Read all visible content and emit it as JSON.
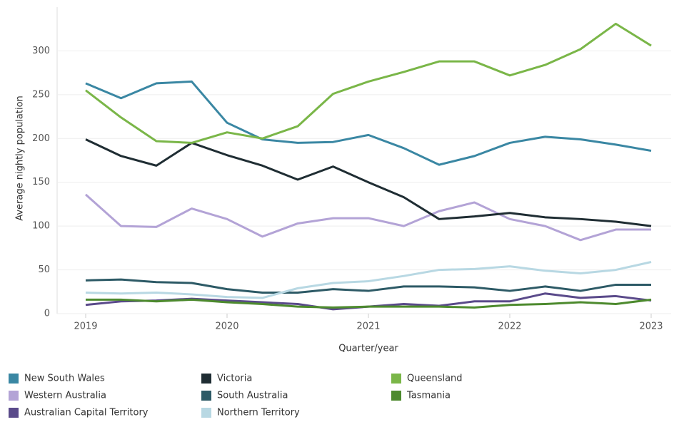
{
  "chart_data": {
    "type": "line",
    "x_label": "Quarter/year",
    "y_label": "Average nightly population",
    "x": [
      2019,
      2019.25,
      2019.5,
      2019.75,
      2020,
      2020.25,
      2020.5,
      2020.75,
      2021,
      2021.25,
      2021.5,
      2021.75,
      2022,
      2022.25,
      2022.5,
      2022.75,
      2023
    ],
    "xlim": [
      2019,
      2023
    ],
    "xticks": [
      2019,
      2020,
      2021,
      2022,
      2023
    ],
    "ylim": [
      0,
      350
    ],
    "yticks": [
      0,
      50,
      100,
      150,
      200,
      250,
      300
    ],
    "grid": true,
    "series": [
      {
        "name": "New South Wales",
        "color": "#3a87a3",
        "values": [
          263,
          246,
          263,
          265,
          218,
          199,
          195,
          196,
          204,
          189,
          170,
          180,
          195,
          202,
          199,
          193,
          186
        ]
      },
      {
        "name": "Western Australia",
        "color": "#b3a3d6",
        "values": [
          136,
          100,
          99,
          120,
          108,
          88,
          103,
          109,
          109,
          100,
          117,
          127,
          108,
          100,
          84,
          96,
          96
        ]
      },
      {
        "name": "Australian Capital Territory",
        "color": "#5a4a8a",
        "values": [
          10,
          14,
          15,
          17,
          15,
          13,
          11,
          5,
          8,
          11,
          9,
          14,
          14,
          23,
          18,
          20,
          15
        ]
      },
      {
        "name": "Victoria",
        "color": "#1f2d33",
        "values": [
          199,
          180,
          169,
          195,
          181,
          169,
          153,
          168,
          150,
          133,
          108,
          111,
          115,
          110,
          108,
          105,
          100
        ]
      },
      {
        "name": "South Australia",
        "color": "#2d5a66",
        "values": [
          38,
          39,
          36,
          35,
          28,
          24,
          24,
          28,
          26,
          31,
          31,
          30,
          26,
          31,
          26,
          33,
          33
        ]
      },
      {
        "name": "Northern Territory",
        "color": "#b8d8e3",
        "values": [
          24,
          23,
          24,
          22,
          19,
          18,
          29,
          35,
          37,
          43,
          50,
          51,
          54,
          49,
          46,
          50,
          59
        ]
      },
      {
        "name": "Queensland",
        "color": "#7ab648",
        "values": [
          255,
          224,
          197,
          195,
          207,
          200,
          214,
          251,
          265,
          276,
          288,
          288,
          272,
          284,
          302,
          331,
          306
        ]
      },
      {
        "name": "Tasmania",
        "color": "#4d8a2e",
        "values": [
          16,
          16,
          14,
          16,
          13,
          11,
          8,
          7,
          8,
          8,
          8,
          7,
          10,
          11,
          13,
          11,
          16
        ]
      }
    ]
  }
}
